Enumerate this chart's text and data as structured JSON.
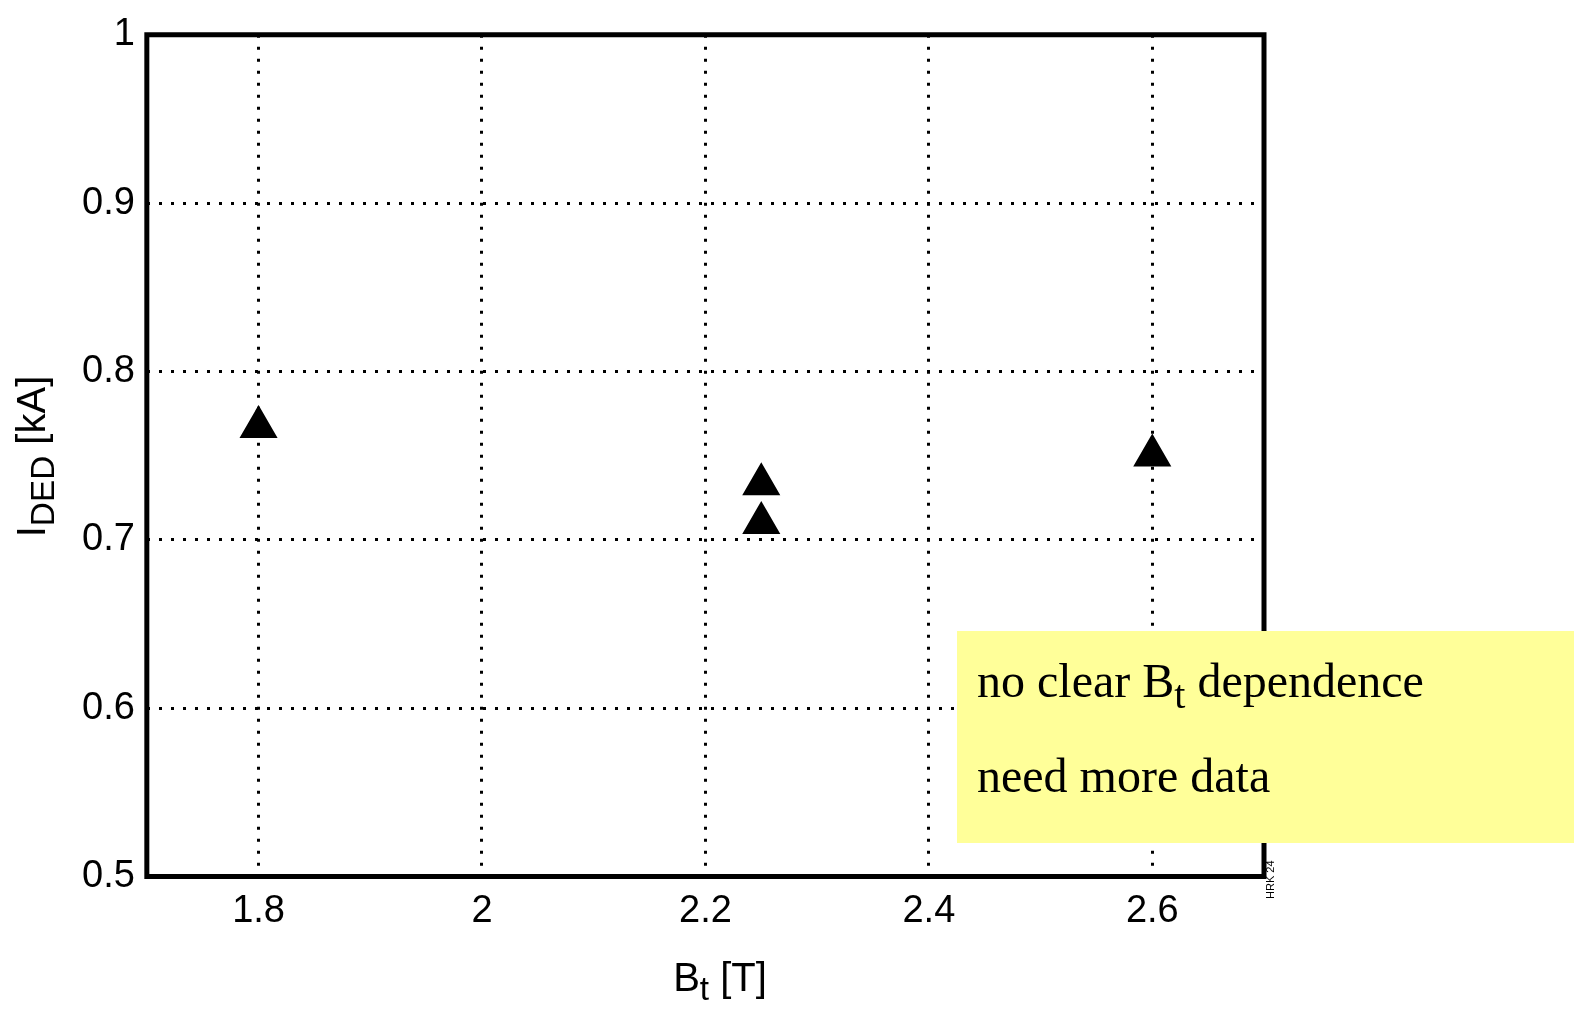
{
  "chart_data": {
    "type": "scatter",
    "xlabel": "B$_{t}$ [T]",
    "ylabel": "I$_{DED}$ [kA]",
    "x": [
      1.8,
      2.25,
      2.25,
      2.6
    ],
    "series": [
      {
        "color": "#000000",
        "values": [
          0.767,
          0.733,
          0.71,
          0.75
        ]
      }
    ],
    "xlim": [
      1.7,
      2.7
    ],
    "xticks": [
      1.8,
      2,
      2.2,
      2.4,
      2.6
    ],
    "ylim": [
      0.5,
      1
    ],
    "yticks": [
      0.5,
      0.6,
      0.7,
      0.8,
      0.9,
      1
    ],
    "grid": true,
    "legend": false,
    "marker": "triangle",
    "annotations": [
      "no clear B$_{t}$ dependence",
      "need more data",
      "HRK 24"
    ]
  }
}
